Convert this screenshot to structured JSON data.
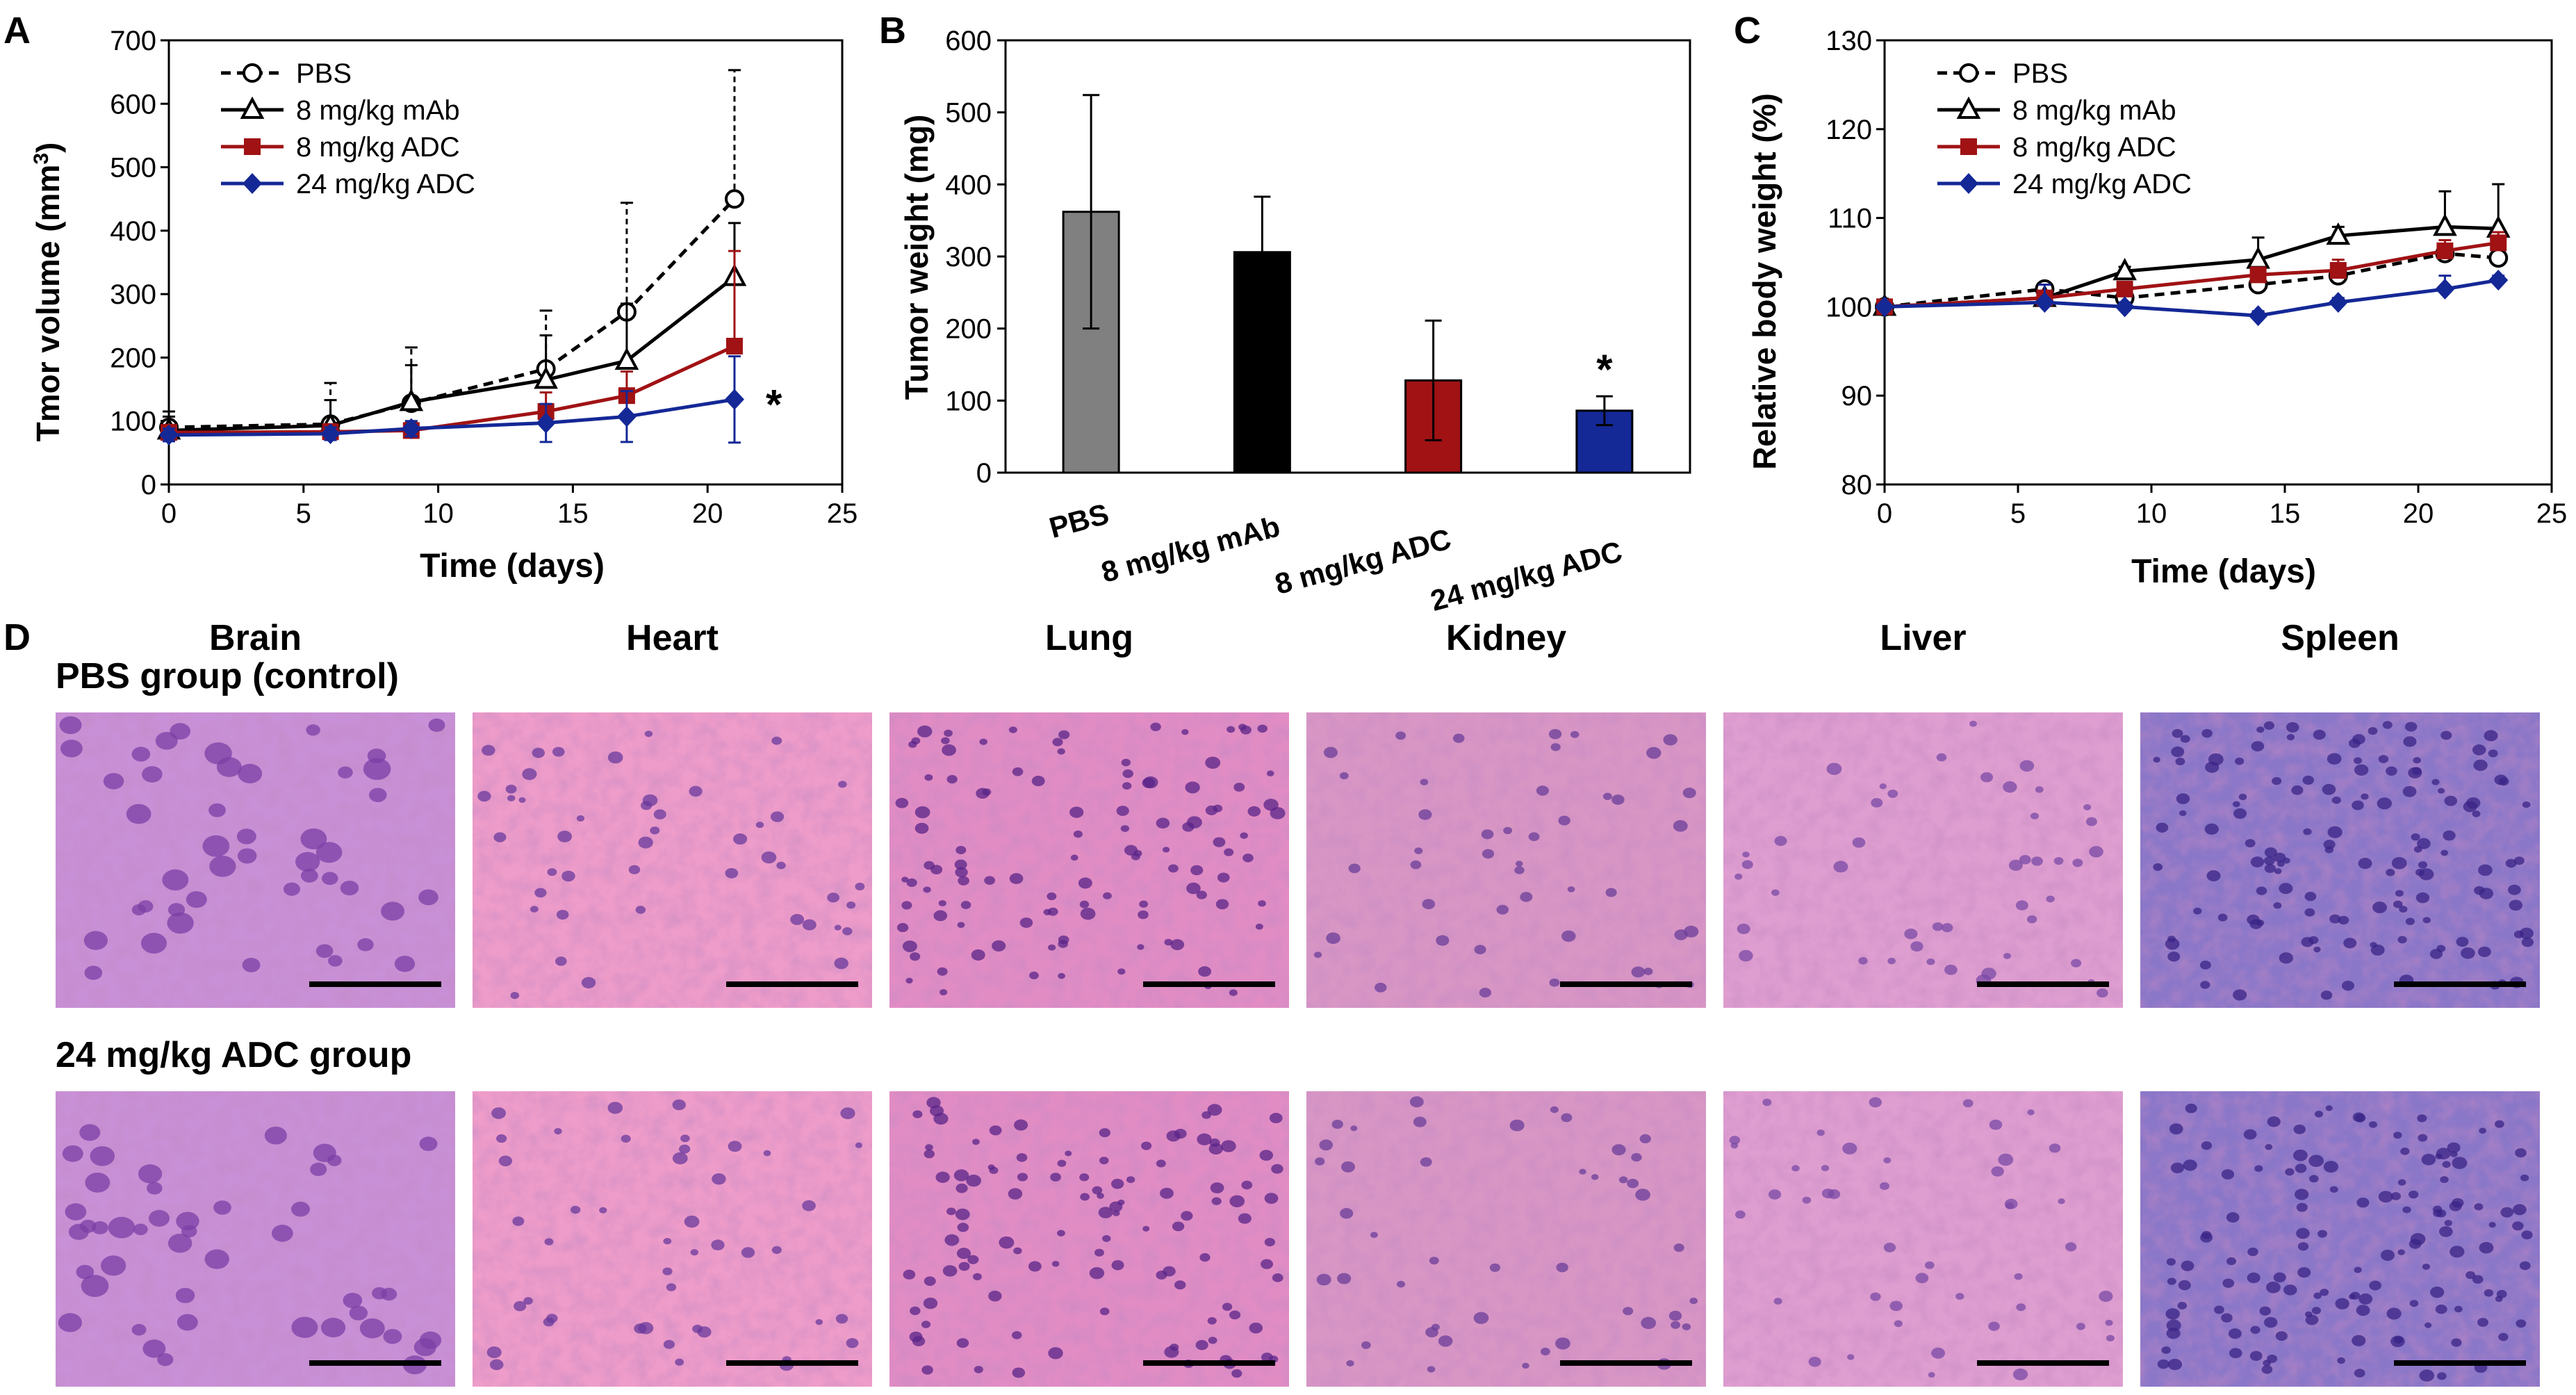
{
  "panels": [
    {
      "label": "A"
    },
    {
      "label": "B"
    },
    {
      "label": "C"
    },
    {
      "label": "D"
    }
  ],
  "colors": {
    "pbs": "#000000",
    "mab": "#000000",
    "adc8": "#a01214",
    "adc24": "#142896",
    "bar_pbs": "#808080"
  },
  "chart_data": [
    {
      "panel": "A",
      "type": "line",
      "title": "",
      "xlabel": "Time (days)",
      "ylabel": "Tmor volume (mm",
      "ylabel_sup": "3",
      "ylabel_close": ")",
      "xlim": [
        0,
        25
      ],
      "ylim": [
        0,
        700
      ],
      "xticks": [
        "0",
        "5",
        "10",
        "15",
        "20",
        "25"
      ],
      "yticks": [
        "0",
        "100",
        "200",
        "300",
        "400",
        "500",
        "600",
        "700"
      ],
      "legend": "top-left",
      "annotation": "*",
      "x": [
        0,
        6,
        9,
        14,
        17,
        21
      ],
      "series": [
        {
          "name": "PBS",
          "marker": "circle-open",
          "dash": true,
          "values": [
            90,
            95,
            128,
            182,
            272,
            450
          ],
          "err": [
            25,
            65,
            88,
            92,
            172,
            203
          ]
        },
        {
          "name": "8 mg/kg mAb",
          "marker": "triangle-open",
          "dash": false,
          "values": [
            85,
            93,
            130,
            165,
            195,
            327
          ],
          "err": [
            22,
            40,
            58,
            70,
            90,
            85
          ]
        },
        {
          "name": "8 mg/kg ADC",
          "marker": "square",
          "dash": false,
          "values": [
            82,
            83,
            85,
            115,
            140,
            218
          ],
          "err": [
            12,
            12,
            12,
            30,
            38,
            150
          ]
        },
        {
          "name": "24 mg/kg ADC",
          "marker": "diamond",
          "dash": false,
          "values": [
            78,
            80,
            88,
            97,
            107,
            134
          ],
          "err": [
            10,
            10,
            12,
            30,
            40,
            68
          ]
        }
      ]
    },
    {
      "panel": "B",
      "type": "bar",
      "title": "",
      "xlabel": "",
      "ylabel": "Tumor weight (mg)",
      "ylim": [
        0,
        600
      ],
      "yticks": [
        "0",
        "100",
        "200",
        "300",
        "400",
        "500",
        "600"
      ],
      "categories": [
        "PBS",
        "8 mg/kg mAb",
        "8 mg/kg ADC",
        "24 mg/kg ADC"
      ],
      "values": [
        362,
        306,
        128,
        86
      ],
      "err": [
        162,
        77,
        83,
        20
      ],
      "annotation": "*"
    },
    {
      "panel": "C",
      "type": "line",
      "title": "",
      "xlabel": "Time (days)",
      "ylabel": "Relative body weight (%)",
      "xlim": [
        0,
        25
      ],
      "ylim": [
        80,
        130
      ],
      "xticks": [
        "0",
        "5",
        "10",
        "15",
        "20",
        "25"
      ],
      "yticks": [
        "80",
        "90",
        "100",
        "110",
        "120",
        "130"
      ],
      "legend": "top-left",
      "x": [
        0,
        6,
        9,
        14,
        17,
        21,
        23
      ],
      "series": [
        {
          "name": "PBS",
          "marker": "circle-open",
          "dash": true,
          "values": [
            100,
            102,
            101,
            102.5,
            103.5,
            106,
            105.5
          ],
          "err": [
            0,
            0.5,
            0.5,
            0.5,
            0.5,
            0.5,
            0.5
          ]
        },
        {
          "name": "8 mg/kg mAb",
          "marker": "triangle-open",
          "dash": false,
          "values": [
            100,
            101,
            104,
            105.3,
            108,
            109,
            108.8
          ],
          "err": [
            0,
            0.5,
            0.5,
            2.5,
            1,
            4,
            5
          ]
        },
        {
          "name": "8 mg/kg ADC",
          "marker": "square",
          "dash": false,
          "values": [
            100,
            101,
            102,
            103.6,
            104.1,
            106.3,
            107.2
          ],
          "err": [
            0,
            0.5,
            0.5,
            0.5,
            1.2,
            1.2,
            1.2
          ]
        },
        {
          "name": "24 mg/kg ADC",
          "marker": "diamond",
          "dash": false,
          "values": [
            100,
            100.5,
            100,
            99,
            100.5,
            102,
            103
          ],
          "err": [
            0,
            2,
            0.5,
            0.5,
            0.5,
            1.5,
            0.5
          ]
        }
      ]
    }
  ],
  "histology": {
    "organs": [
      "Brain",
      "Heart",
      "Lung",
      "Kidney",
      "Liver",
      "Spleen"
    ],
    "rows": [
      {
        "label": "PBS group (control)"
      },
      {
        "label": "24 mg/kg ADC group"
      }
    ]
  }
}
